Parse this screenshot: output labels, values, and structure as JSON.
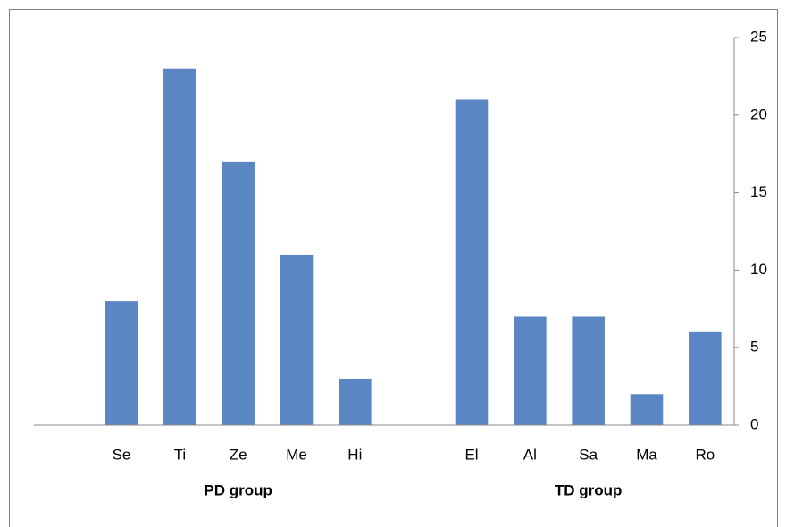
{
  "chart_data": {
    "type": "bar",
    "categories": [
      null,
      "Se",
      "Ti",
      "Ze",
      "Me",
      "Hi",
      null,
      "El",
      "Al",
      "Sa",
      "Ma",
      "Ro"
    ],
    "values": [
      null,
      8,
      23,
      17,
      11,
      3,
      null,
      21,
      7,
      7,
      2,
      6
    ],
    "groups": [
      "PD group",
      "TD group"
    ],
    "color": "#5b86c4",
    "ylim": [
      0,
      25
    ],
    "yticks": [
      0,
      5,
      10,
      15,
      20,
      25
    ],
    "y_axis_side": "right",
    "grid": false
  }
}
